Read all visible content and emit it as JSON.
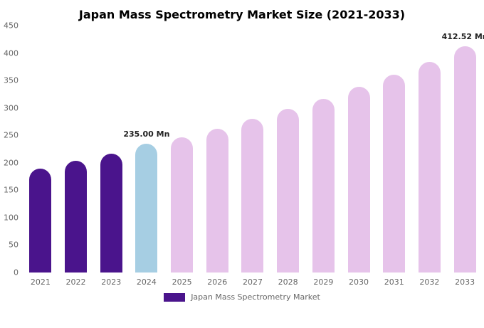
{
  "chart_data": {
    "type": "bar",
    "title": "Japan Mass Spectrometry Market Size (2021-2033)",
    "categories": [
      "2021",
      "2022",
      "2023",
      "2024",
      "2025",
      "2026",
      "2027",
      "2028",
      "2029",
      "2030",
      "2031",
      "2032",
      "2033"
    ],
    "values": [
      190,
      203,
      217,
      235,
      247,
      262,
      280,
      298,
      317,
      338,
      360,
      384,
      412.52
    ],
    "unit": "Mn",
    "xlabel": "",
    "ylabel": "",
    "ylim": [
      0,
      450
    ],
    "yticks": [
      0,
      50,
      100,
      150,
      200,
      250,
      300,
      350,
      400,
      450
    ],
    "grid": false,
    "legend_position": "bottom",
    "bar_colors": [
      "#4a148c",
      "#4a148c",
      "#4a148c",
      "#a6cee3",
      "#e6c3ea",
      "#e6c3ea",
      "#e6c3ea",
      "#e6c3ea",
      "#e6c3ea",
      "#e6c3ea",
      "#e6c3ea",
      "#e6c3ea",
      "#e6c3ea"
    ],
    "annotations": [
      {
        "category": "2024",
        "text": "235.00 Mn"
      },
      {
        "category": "2033",
        "text": "412.52 Mn"
      }
    ]
  },
  "legend": {
    "label": "Japan Mass Spectrometry Market",
    "swatch_color": "#4a148c"
  },
  "colors": {
    "historical": "#4a148c",
    "highlight": "#a6cee3",
    "forecast": "#e6c3ea"
  }
}
